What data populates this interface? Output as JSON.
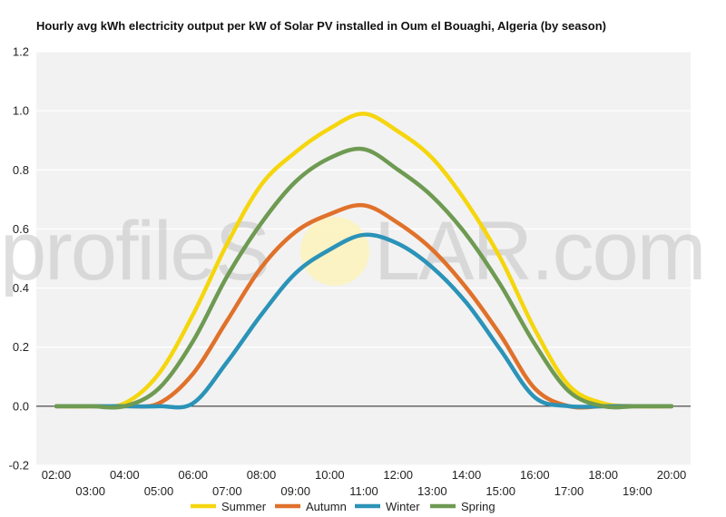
{
  "watermark": {
    "prefix": "profileS",
    "suffix": "LAR.com"
  },
  "colors": {
    "background": "#f2f2f2",
    "grid": "#ffffff",
    "zero_line": "#222222",
    "sun_glow": "#fdf2b8"
  },
  "chart_data": {
    "type": "line",
    "title": "Hourly avg kWh electricity output per kW of Solar PV installed in Oum el Bouaghi, Algeria (by season)",
    "x": [
      "02:00",
      "03:00",
      "04:00",
      "05:00",
      "06:00",
      "07:00",
      "08:00",
      "09:00",
      "10:00",
      "11:00",
      "12:00",
      "13:00",
      "14:00",
      "15:00",
      "16:00",
      "17:00",
      "18:00",
      "19:00",
      "20:00"
    ],
    "x_tick_labels_top": [
      "02:00",
      "04:00",
      "06:00",
      "08:00",
      "10:00",
      "12:00",
      "14:00",
      "16:00",
      "18:00",
      "20:00"
    ],
    "x_tick_labels_bottom": [
      "03:00",
      "05:00",
      "07:00",
      "09:00",
      "11:00",
      "13:00",
      "15:00",
      "17:00",
      "19:00"
    ],
    "ylim": [
      -0.2,
      1.2
    ],
    "y_ticks": [
      "-0.2",
      "0.0",
      "0.2",
      "0.4",
      "0.6",
      "0.8",
      "1.0",
      "1.2"
    ],
    "grid": true,
    "legend_position": "bottom",
    "series": [
      {
        "name": "Summer",
        "color": "#f5d60e",
        "values": [
          0,
          0,
          0.01,
          0.11,
          0.31,
          0.55,
          0.75,
          0.86,
          0.94,
          0.99,
          0.93,
          0.84,
          0.69,
          0.5,
          0.26,
          0.07,
          0.01,
          0,
          0
        ]
      },
      {
        "name": "Autumn",
        "color": "#e0712b",
        "values": [
          0,
          0,
          0,
          0.01,
          0.11,
          0.29,
          0.47,
          0.59,
          0.65,
          0.68,
          0.62,
          0.53,
          0.4,
          0.24,
          0.06,
          0.0,
          0,
          0,
          0
        ]
      },
      {
        "name": "Winter",
        "color": "#2b93b8",
        "values": [
          0,
          0,
          0,
          0,
          0.01,
          0.15,
          0.31,
          0.45,
          0.53,
          0.58,
          0.55,
          0.47,
          0.35,
          0.19,
          0.03,
          0.0,
          0,
          0,
          0
        ]
      },
      {
        "name": "Spring",
        "color": "#6e9a52",
        "values": [
          0,
          0,
          0,
          0.06,
          0.22,
          0.44,
          0.62,
          0.76,
          0.84,
          0.87,
          0.8,
          0.71,
          0.58,
          0.41,
          0.21,
          0.05,
          0,
          0,
          0
        ]
      }
    ]
  }
}
